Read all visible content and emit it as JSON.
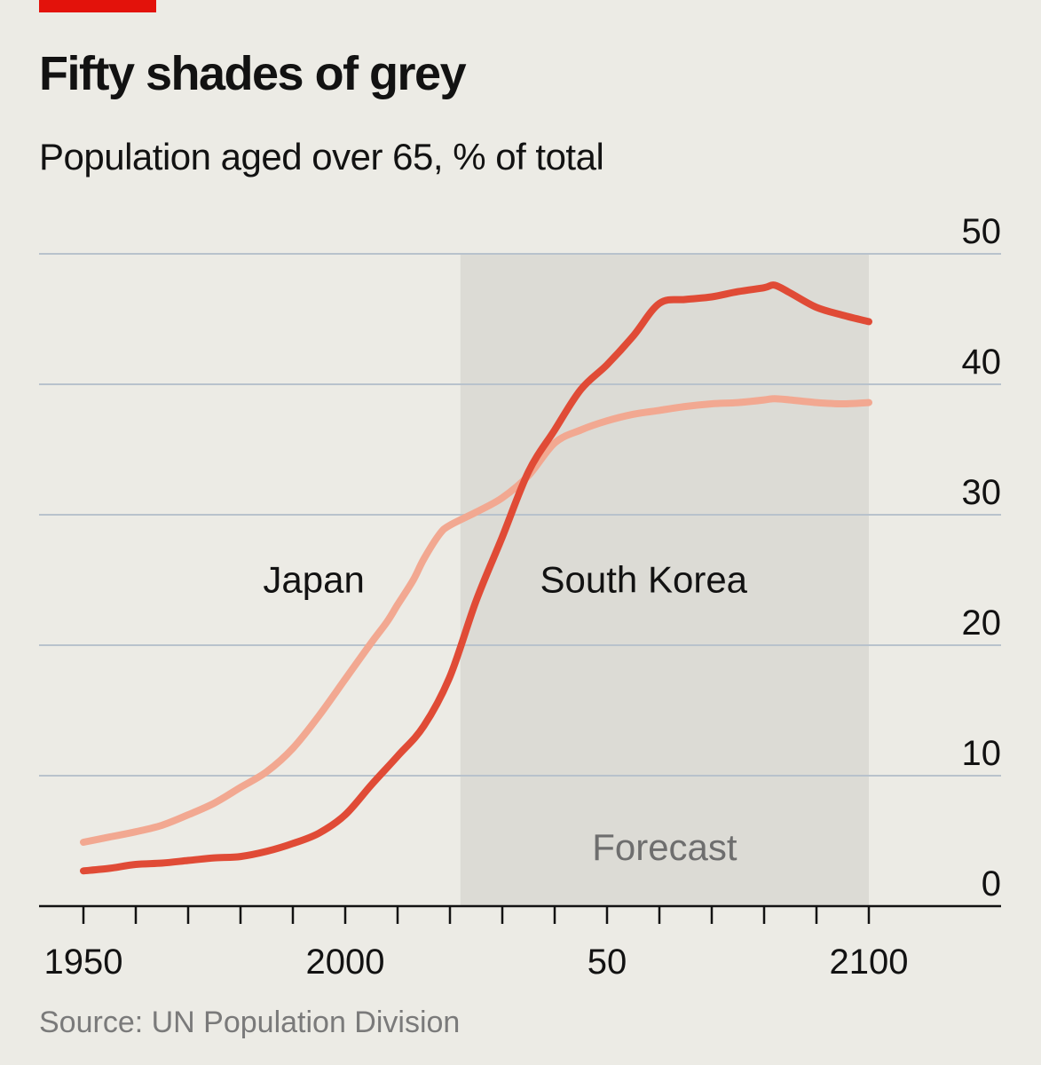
{
  "header": {
    "title": "Fifty shades of grey",
    "subtitle": "Population aged over 65, % of total"
  },
  "footer": {
    "source": "Source: UN Population Division"
  },
  "colors": {
    "brand_red": "#e3120b",
    "south_korea": "#e04b36",
    "japan": "#f2a891",
    "forecast_shade": "#dcdbd5",
    "gridline": "#b8c2cc",
    "background": "#ecebe5"
  },
  "chart_data": {
    "type": "line",
    "title": "Fifty shades of grey",
    "subtitle": "Population aged over 65, % of total",
    "xlim": [
      1950,
      2100
    ],
    "ylim": [
      0,
      50
    ],
    "y_axis_position": "right",
    "grid": true,
    "x_ticks": [
      1950,
      1960,
      1970,
      1980,
      1990,
      2000,
      2010,
      2020,
      2030,
      2040,
      2050,
      2060,
      2070,
      2080,
      2090,
      2100
    ],
    "x_tick_labels": [
      {
        "value": 1950,
        "label": "1950"
      },
      {
        "value": 2000,
        "label": "2000"
      },
      {
        "value": 2050,
        "label": "50"
      },
      {
        "value": 2100,
        "label": "2100"
      }
    ],
    "y_tick_labels": [
      {
        "value": 0,
        "label": "0"
      },
      {
        "value": 10,
        "label": "10"
      },
      {
        "value": 20,
        "label": "20"
      },
      {
        "value": 30,
        "label": "30"
      },
      {
        "value": 40,
        "label": "40"
      },
      {
        "value": 50,
        "label": "50"
      }
    ],
    "forecast": {
      "from": 2022,
      "to": 2100,
      "label": "Forecast"
    },
    "series": [
      {
        "name": "Japan",
        "color": "#f2a891",
        "x": [
          1950,
          1955,
          1960,
          1965,
          1970,
          1975,
          1980,
          1985,
          1990,
          1995,
          2000,
          2005,
          2008,
          2010,
          2013,
          2015,
          2018,
          2020,
          2025,
          2030,
          2035,
          2040,
          2045,
          2050,
          2055,
          2060,
          2065,
          2070,
          2075,
          2080,
          2082,
          2085,
          2090,
          2095,
          2100
        ],
        "values": [
          4.9,
          5.3,
          5.7,
          6.2,
          7.0,
          7.9,
          9.1,
          10.3,
          12.1,
          14.6,
          17.4,
          20.2,
          21.8,
          23.1,
          25.0,
          26.6,
          28.5,
          29.2,
          30.2,
          31.3,
          33.0,
          35.5,
          36.5,
          37.2,
          37.7,
          38.0,
          38.3,
          38.5,
          38.6,
          38.8,
          38.9,
          38.8,
          38.6,
          38.5,
          38.6
        ]
      },
      {
        "name": "South Korea",
        "color": "#e04b36",
        "x": [
          1950,
          1955,
          1960,
          1965,
          1970,
          1975,
          1980,
          1985,
          1990,
          1995,
          2000,
          2005,
          2010,
          2015,
          2020,
          2025,
          2030,
          2035,
          2040,
          2045,
          2050,
          2055,
          2060,
          2065,
          2070,
          2075,
          2080,
          2082,
          2085,
          2090,
          2095,
          2100
        ],
        "values": [
          2.7,
          2.9,
          3.2,
          3.3,
          3.5,
          3.7,
          3.8,
          4.2,
          4.8,
          5.6,
          7.0,
          9.3,
          11.5,
          13.8,
          17.6,
          23.4,
          28.3,
          33.3,
          36.5,
          39.6,
          41.5,
          43.7,
          46.2,
          46.5,
          46.7,
          47.1,
          47.4,
          47.6,
          47.0,
          45.9,
          45.3,
          44.8
        ]
      }
    ],
    "annotations": [
      {
        "text": "Japan",
        "x": 1994,
        "y": 25
      },
      {
        "text": "South Korea",
        "x": 2057,
        "y": 25
      },
      {
        "text": "Forecast",
        "x": 2061,
        "y": 4.5
      }
    ]
  }
}
